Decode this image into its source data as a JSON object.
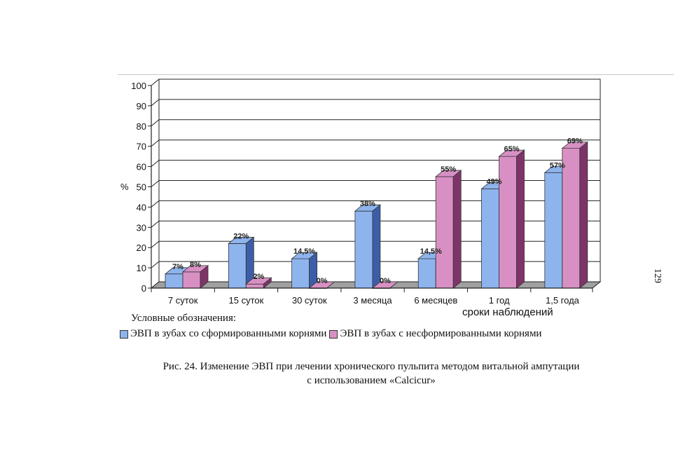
{
  "page": {
    "number": "129",
    "legend_title": "Условные обозначения:",
    "caption_line1": "Рис. 24.  Изменение ЭВП при лечении хронического пульпита методом витальной ампутации",
    "caption_line2": "с использованием «Calcicur»"
  },
  "chart_data": {
    "type": "bar",
    "xlabel": "сроки наблюдений",
    "ylabel": "%",
    "ylim": [
      0,
      100
    ],
    "yticks": [
      "0",
      "10",
      "20",
      "30",
      "40",
      "50",
      "60",
      "70",
      "80",
      "90",
      "100"
    ],
    "grid": true,
    "legend_position": "bottom",
    "categories": [
      "7 суток",
      "15 суток",
      "30 суток",
      "3 месяца",
      "6 месяцев",
      "1 год",
      "1,5 года"
    ],
    "series": [
      {
        "name": "ЭВП в зубах со сформированными корнями",
        "color": "#8eb4ee",
        "side_color": "#3c5ea8",
        "values": [
          7,
          22,
          14.5,
          38,
          14.5,
          49,
          57
        ],
        "labels": [
          "7%",
          "22%",
          "14,5%",
          "38%",
          "14,5%",
          "49%",
          "57%"
        ]
      },
      {
        "name": "ЭВП в зубах с несформированными корнями",
        "color": "#d890c4",
        "side_color": "#7e3468",
        "values": [
          8,
          2,
          0,
          0,
          55,
          65,
          69
        ],
        "labels": [
          "8%",
          "2%",
          "0%",
          "0%",
          "55%",
          "65%",
          "69%"
        ]
      }
    ]
  }
}
